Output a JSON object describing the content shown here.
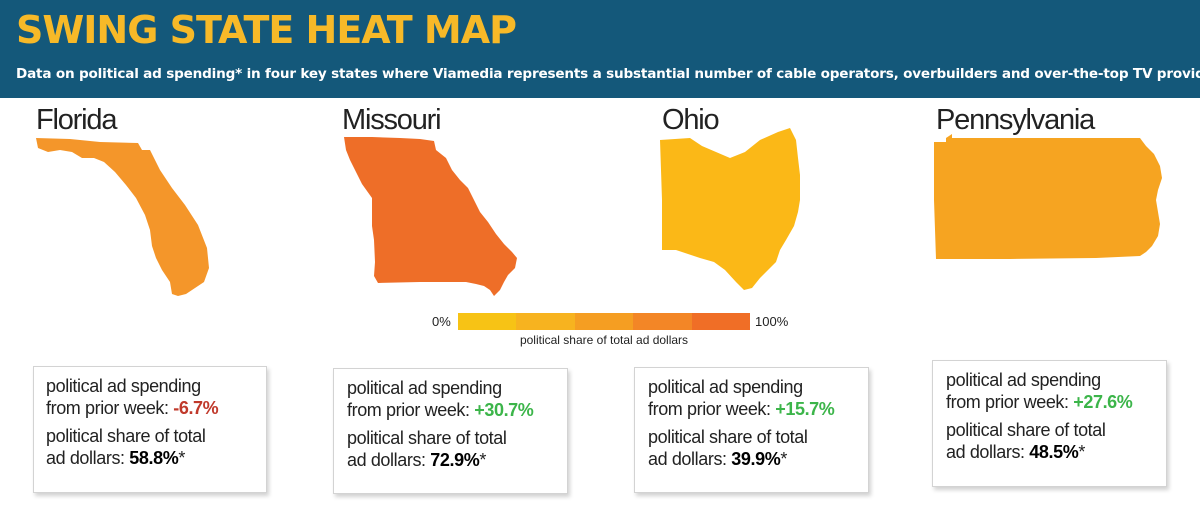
{
  "header": {
    "title": "SWING STATE HEAT MAP",
    "subtitle": "Data on political ad spending* in four key states where Viamedia represents a substantial number of cable operators, overbuilders and over-the-top TV providers"
  },
  "legend": {
    "min_label": "0%",
    "max_label": "100%",
    "caption": "political share of total ad dollars",
    "colors": [
      "#f7c315",
      "#f7b31f",
      "#f59e22",
      "#f38626",
      "#f06e26"
    ]
  },
  "labels": {
    "change_line1": "political ad spending",
    "change_line2": "from prior week:",
    "share_line1": "political share of total",
    "share_line2": "ad dollars:",
    "footnote_mark": "*"
  },
  "states": [
    {
      "name": "Florida",
      "change": "-6.7%",
      "share": "58.8%",
      "color": "#f4962a"
    },
    {
      "name": "Missouri",
      "change": "+30.7%",
      "share": "72.9%",
      "color": "#ee6e28"
    },
    {
      "name": "Ohio",
      "change": "+15.7%",
      "share": "39.9%",
      "color": "#fbb817"
    },
    {
      "name": "Pennsylvania",
      "change": "+27.6%",
      "share": "48.5%",
      "color": "#f6a421"
    }
  ]
}
